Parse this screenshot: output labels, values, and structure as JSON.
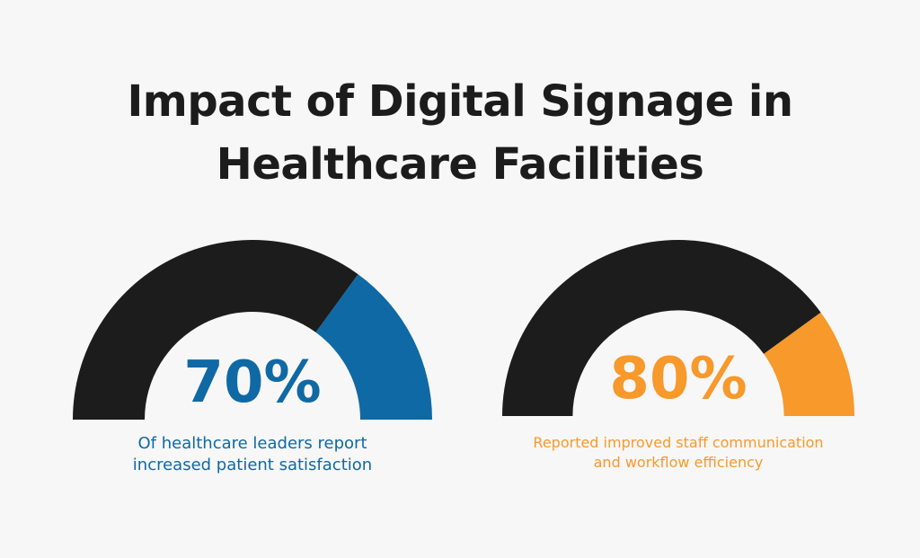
{
  "title": {
    "line1": "Impact of Digital Signage in",
    "line2": "Healthcare Facilities"
  },
  "colors": {
    "background": "#f7f7f7",
    "dark": "#1c1c1c",
    "blue": "#0f69a4",
    "orange": "#f7992b"
  },
  "chart_data": [
    {
      "type": "gauge",
      "value": 70,
      "max": 100,
      "value_label": "70%",
      "color": "#0f69a4",
      "remainder_color": "#1c1c1c",
      "caption": [
        "Of healthcare leaders report",
        "increased patient satisfaction"
      ]
    },
    {
      "type": "gauge",
      "value": 80,
      "max": 100,
      "value_label": "80%",
      "color": "#f7992b",
      "remainder_color": "#1c1c1c",
      "caption": [
        "Reported improved staff communication",
        "and workflow efficiency"
      ]
    }
  ]
}
